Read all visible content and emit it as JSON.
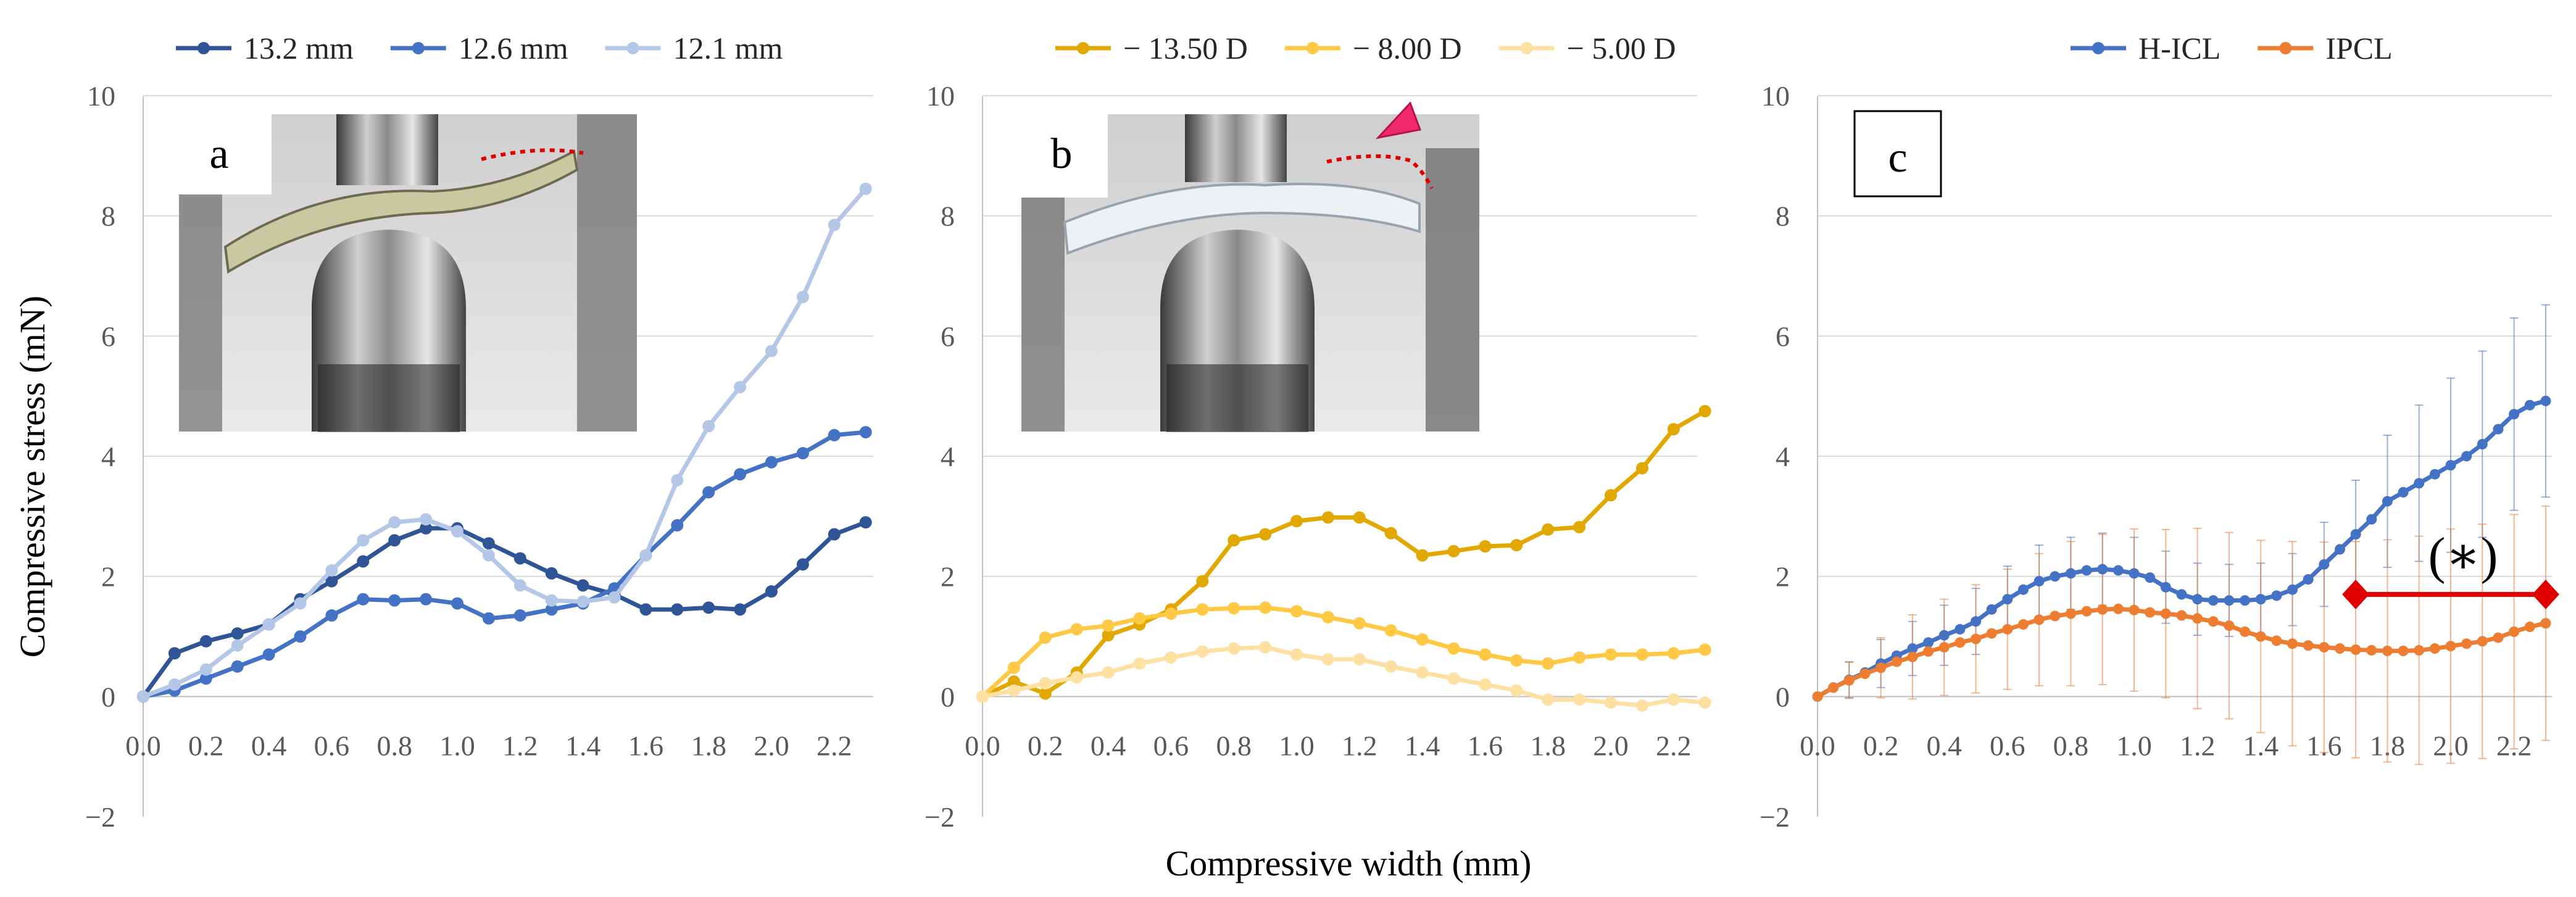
{
  "figure": {
    "x_axis_title": "Compressive width (mm)",
    "y_axis_title": "Compressive stress (mN)",
    "y_ticks": [
      "10",
      "8",
      "6",
      "4",
      "2",
      "0",
      "−2"
    ],
    "x_ticks": [
      "0.0",
      "0.2",
      "0.4",
      "0.6",
      "0.8",
      "1.0",
      "1.2",
      "1.4",
      "1.6",
      "1.8",
      "2.0",
      "2.2"
    ]
  },
  "chart_data": [
    {
      "type": "line",
      "panel_label": "a",
      "title": "",
      "xlabel": "",
      "ylabel": "Compressive stress (mN)",
      "xlim": [
        0,
        2.3
      ],
      "ylim": [
        -2,
        10
      ],
      "legend_position": "top",
      "grid": true,
      "inset_photo": "device compressed between two metal plates, dotted red curve marking the lens edge",
      "series": [
        {
          "name": "13.2 mm",
          "color": "#2f5597",
          "x": [
            0,
            0.1,
            0.2,
            0.3,
            0.4,
            0.5,
            0.6,
            0.7,
            0.8,
            0.9,
            1.0,
            1.1,
            1.2,
            1.3,
            1.4,
            1.5,
            1.6,
            1.7,
            1.8,
            1.9,
            2.0,
            2.1,
            2.2,
            2.3
          ],
          "y": [
            0,
            0.72,
            0.92,
            1.05,
            1.2,
            1.62,
            1.92,
            2.25,
            2.6,
            2.8,
            2.8,
            2.55,
            2.3,
            2.05,
            1.85,
            1.7,
            1.45,
            1.45,
            1.48,
            1.45,
            1.75,
            2.2,
            2.7,
            2.9
          ]
        },
        {
          "name": "12.6 mm",
          "color": "#4472c4",
          "x": [
            0,
            0.1,
            0.2,
            0.3,
            0.4,
            0.5,
            0.6,
            0.7,
            0.8,
            0.9,
            1.0,
            1.1,
            1.2,
            1.3,
            1.4,
            1.5,
            1.6,
            1.7,
            1.8,
            1.9,
            2.0,
            2.1,
            2.2,
            2.3
          ],
          "y": [
            0,
            0.1,
            0.3,
            0.5,
            0.7,
            1.0,
            1.35,
            1.62,
            1.6,
            1.62,
            1.55,
            1.3,
            1.35,
            1.45,
            1.55,
            1.8,
            2.35,
            2.85,
            3.4,
            3.7,
            3.9,
            4.05,
            4.35,
            4.4
          ]
        },
        {
          "name": "12.1 mm",
          "color": "#b4c7e7",
          "x": [
            0,
            0.1,
            0.2,
            0.3,
            0.4,
            0.5,
            0.6,
            0.7,
            0.8,
            0.9,
            1.0,
            1.1,
            1.2,
            1.3,
            1.4,
            1.5,
            1.6,
            1.7,
            1.8,
            1.9,
            2.0,
            2.1,
            2.2,
            2.3
          ],
          "y": [
            0,
            0.2,
            0.45,
            0.85,
            1.2,
            1.55,
            2.1,
            2.6,
            2.9,
            2.95,
            2.75,
            2.35,
            1.85,
            1.6,
            1.58,
            1.65,
            2.35,
            3.6,
            4.5,
            5.15,
            5.75,
            6.65,
            7.85,
            8.45
          ]
        }
      ]
    },
    {
      "type": "line",
      "panel_label": "b",
      "title": "",
      "xlabel": "",
      "ylabel": "",
      "xlim": [
        0,
        2.3
      ],
      "ylim": [
        -2,
        10
      ],
      "legend_position": "top",
      "grid": true,
      "inset_photo": "clear lens compressed between two metal plates, dotted red curve with a pink arrowhead marker",
      "series": [
        {
          "name": "− 13.50 D",
          "color": "#e0a800",
          "x": [
            0,
            0.1,
            0.2,
            0.3,
            0.4,
            0.5,
            0.6,
            0.7,
            0.8,
            0.9,
            1.0,
            1.1,
            1.2,
            1.3,
            1.4,
            1.5,
            1.6,
            1.7,
            1.8,
            1.9,
            2.0,
            2.1,
            2.2,
            2.3
          ],
          "y": [
            0,
            0.25,
            0.05,
            0.4,
            1.02,
            1.2,
            1.45,
            1.92,
            2.6,
            2.7,
            2.92,
            2.98,
            2.98,
            2.72,
            2.35,
            2.42,
            2.5,
            2.52,
            2.78,
            2.82,
            3.35,
            3.8,
            4.45,
            4.75
          ]
        },
        {
          "name": "− 8.00 D",
          "color": "#ffc845",
          "x": [
            0,
            0.1,
            0.2,
            0.3,
            0.4,
            0.5,
            0.6,
            0.7,
            0.8,
            0.9,
            1.0,
            1.1,
            1.2,
            1.3,
            1.4,
            1.5,
            1.6,
            1.7,
            1.8,
            1.9,
            2.0,
            2.1,
            2.2,
            2.3
          ],
          "y": [
            0,
            0.48,
            0.98,
            1.12,
            1.18,
            1.3,
            1.38,
            1.45,
            1.47,
            1.48,
            1.42,
            1.32,
            1.22,
            1.1,
            0.95,
            0.8,
            0.7,
            0.6,
            0.55,
            0.65,
            0.7,
            0.7,
            0.72,
            0.78
          ]
        },
        {
          "name": "− 5.00 D",
          "color": "#ffe0a3",
          "x": [
            0,
            0.1,
            0.2,
            0.3,
            0.4,
            0.5,
            0.6,
            0.7,
            0.8,
            0.9,
            1.0,
            1.1,
            1.2,
            1.3,
            1.4,
            1.5,
            1.6,
            1.7,
            1.8,
            1.9,
            2.0,
            2.1,
            2.2,
            2.3
          ],
          "y": [
            0,
            0.1,
            0.22,
            0.32,
            0.4,
            0.55,
            0.65,
            0.75,
            0.8,
            0.82,
            0.7,
            0.62,
            0.62,
            0.5,
            0.4,
            0.3,
            0.2,
            0.1,
            -0.05,
            -0.05,
            -0.1,
            -0.15,
            -0.05,
            -0.1
          ]
        }
      ]
    },
    {
      "type": "line",
      "panel_label": "c",
      "title": "",
      "xlabel": "",
      "ylabel": "",
      "xlim": [
        0,
        2.3
      ],
      "ylim": [
        -2,
        10
      ],
      "legend_position": "top",
      "grid": true,
      "annotation": {
        "text": "(∗)",
        "x_start": 1.7,
        "x_end": 2.3,
        "y": 1.7,
        "color": "#e00000"
      },
      "series": [
        {
          "name": "H-ICL",
          "color": "#4472c4",
          "x": [
            0,
            0.05,
            0.1,
            0.15,
            0.2,
            0.25,
            0.3,
            0.35,
            0.4,
            0.45,
            0.5,
            0.55,
            0.6,
            0.65,
            0.7,
            0.75,
            0.8,
            0.85,
            0.9,
            0.95,
            1.0,
            1.05,
            1.1,
            1.15,
            1.2,
            1.25,
            1.3,
            1.35,
            1.4,
            1.45,
            1.5,
            1.55,
            1.6,
            1.65,
            1.7,
            1.75,
            1.8,
            1.85,
            1.9,
            1.95,
            2.0,
            2.05,
            2.1,
            2.15,
            2.2,
            2.25,
            2.3
          ],
          "y": [
            0,
            0.15,
            0.28,
            0.4,
            0.55,
            0.68,
            0.8,
            0.9,
            1.02,
            1.12,
            1.25,
            1.45,
            1.62,
            1.78,
            1.92,
            2.0,
            2.05,
            2.1,
            2.12,
            2.1,
            2.05,
            1.98,
            1.82,
            1.7,
            1.62,
            1.6,
            1.6,
            1.6,
            1.62,
            1.68,
            1.78,
            1.95,
            2.2,
            2.45,
            2.7,
            2.95,
            3.25,
            3.4,
            3.55,
            3.7,
            3.85,
            4.0,
            4.2,
            4.45,
            4.7,
            4.85,
            4.92
          ]
        },
        {
          "name": "IPCL",
          "color": "#ed7d31",
          "x": [
            0,
            0.05,
            0.1,
            0.15,
            0.2,
            0.25,
            0.3,
            0.35,
            0.4,
            0.45,
            0.5,
            0.55,
            0.6,
            0.65,
            0.7,
            0.75,
            0.8,
            0.85,
            0.9,
            0.95,
            1.0,
            1.05,
            1.1,
            1.15,
            1.2,
            1.25,
            1.3,
            1.35,
            1.4,
            1.45,
            1.5,
            1.55,
            1.6,
            1.65,
            1.7,
            1.75,
            1.8,
            1.85,
            1.9,
            1.95,
            2.0,
            2.05,
            2.1,
            2.15,
            2.2,
            2.25,
            2.3
          ],
          "y": [
            0,
            0.15,
            0.27,
            0.38,
            0.48,
            0.58,
            0.66,
            0.75,
            0.82,
            0.9,
            0.96,
            1.05,
            1.12,
            1.2,
            1.28,
            1.34,
            1.38,
            1.42,
            1.45,
            1.46,
            1.44,
            1.4,
            1.38,
            1.35,
            1.3,
            1.25,
            1.18,
            1.08,
            1.0,
            0.93,
            0.88,
            0.85,
            0.82,
            0.8,
            0.78,
            0.77,
            0.76,
            0.76,
            0.77,
            0.8,
            0.84,
            0.88,
            0.92,
            0.98,
            1.08,
            1.16,
            1.22
          ]
        }
      ],
      "error_bars": {
        "H-ICL": [
          0,
          0.25,
          0.3,
          0.35,
          0.4,
          0.45,
          0.45,
          0.5,
          0.5,
          0.55,
          0.55,
          0.55,
          0.55,
          0.55,
          0.6,
          0.6,
          0.6,
          0.6,
          0.6,
          0.6,
          0.6,
          0.6,
          0.6,
          0.6,
          0.6,
          0.6,
          0.6,
          0.6,
          0.6,
          0.6,
          0.6,
          0.6,
          0.7,
          0.8,
          0.9,
          1.0,
          1.1,
          1.2,
          1.3,
          1.4,
          1.45,
          1.5,
          1.55,
          1.55,
          1.6,
          1.6,
          1.6
        ],
        "IPCL": [
          0,
          0.2,
          0.3,
          0.4,
          0.5,
          0.6,
          0.7,
          0.75,
          0.8,
          0.85,
          0.9,
          0.95,
          1.0,
          1.05,
          1.1,
          1.15,
          1.2,
          1.2,
          1.25,
          1.3,
          1.35,
          1.4,
          1.4,
          1.45,
          1.5,
          1.5,
          1.55,
          1.6,
          1.6,
          1.65,
          1.7,
          1.7,
          1.75,
          1.8,
          1.8,
          1.85,
          1.85,
          1.9,
          1.9,
          1.9,
          1.95,
          1.95,
          1.95,
          1.95,
          1.95,
          1.95,
          1.95
        ]
      }
    }
  ]
}
